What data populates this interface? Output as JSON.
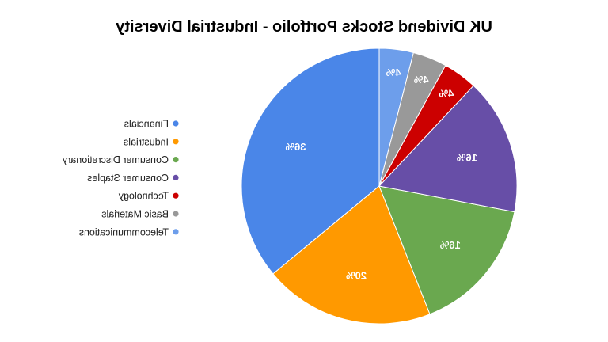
{
  "chart_data": {
    "type": "pie",
    "title": "UK Dividend Stocks Portfolio - Industrial Diversity",
    "legend_position": "left",
    "slices": [
      {
        "label": "Financials",
        "value": 36,
        "value_label": "36%",
        "color": "#4a86e8"
      },
      {
        "label": "Industrials",
        "value": 20,
        "value_label": "20%",
        "color": "#ff9900"
      },
      {
        "label": "Consumer Discretionary",
        "value": 16,
        "value_label": "16%",
        "color": "#6aa84f"
      },
      {
        "label": "Consumer Staples",
        "value": 16,
        "value_label": "16%",
        "color": "#674ea7"
      },
      {
        "label": "Technology",
        "value": 4,
        "value_label": "4%",
        "color": "#cc0000"
      },
      {
        "label": "Basic Materials",
        "value": 4,
        "value_label": "4%",
        "color": "#999999"
      },
      {
        "label": "Telecommunications",
        "value": 4,
        "value_label": "4%",
        "color": "#6d9eeb"
      }
    ]
  }
}
